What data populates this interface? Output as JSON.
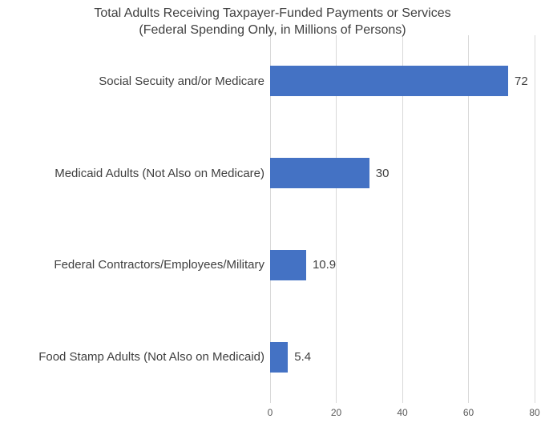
{
  "chart_data": {
    "type": "bar",
    "orientation": "horizontal",
    "title_line1": "Total Adults Receiving Taxpayer-Funded Payments or Services",
    "title_line2": "(Federal Spending Only, in Millions of Persons)",
    "categories": [
      "Social Secuity and/or Medicare",
      "Medicaid Adults (Not Also on Medicare)",
      "Federal Contractors/Employees/Military",
      "Food Stamp Adults (Not Also on Medicaid)"
    ],
    "values": [
      72,
      30,
      10.9,
      5.4
    ],
    "value_labels": [
      "72",
      "30",
      "10.9",
      "5.4"
    ],
    "x_axis": {
      "min": 0,
      "max": 80,
      "ticks": [
        0,
        20,
        40,
        60,
        80
      ],
      "tick_labels": [
        "0",
        "20",
        "40",
        "60",
        "80"
      ],
      "position": "bottom"
    },
    "grid": "vertical-only",
    "legend": "none",
    "colors": {
      "bar": "#4472C4",
      "gridline": "#D9D9D9",
      "tick_label": "#595959",
      "text": "#3F3F3F",
      "background": "#FFFFFF"
    }
  }
}
